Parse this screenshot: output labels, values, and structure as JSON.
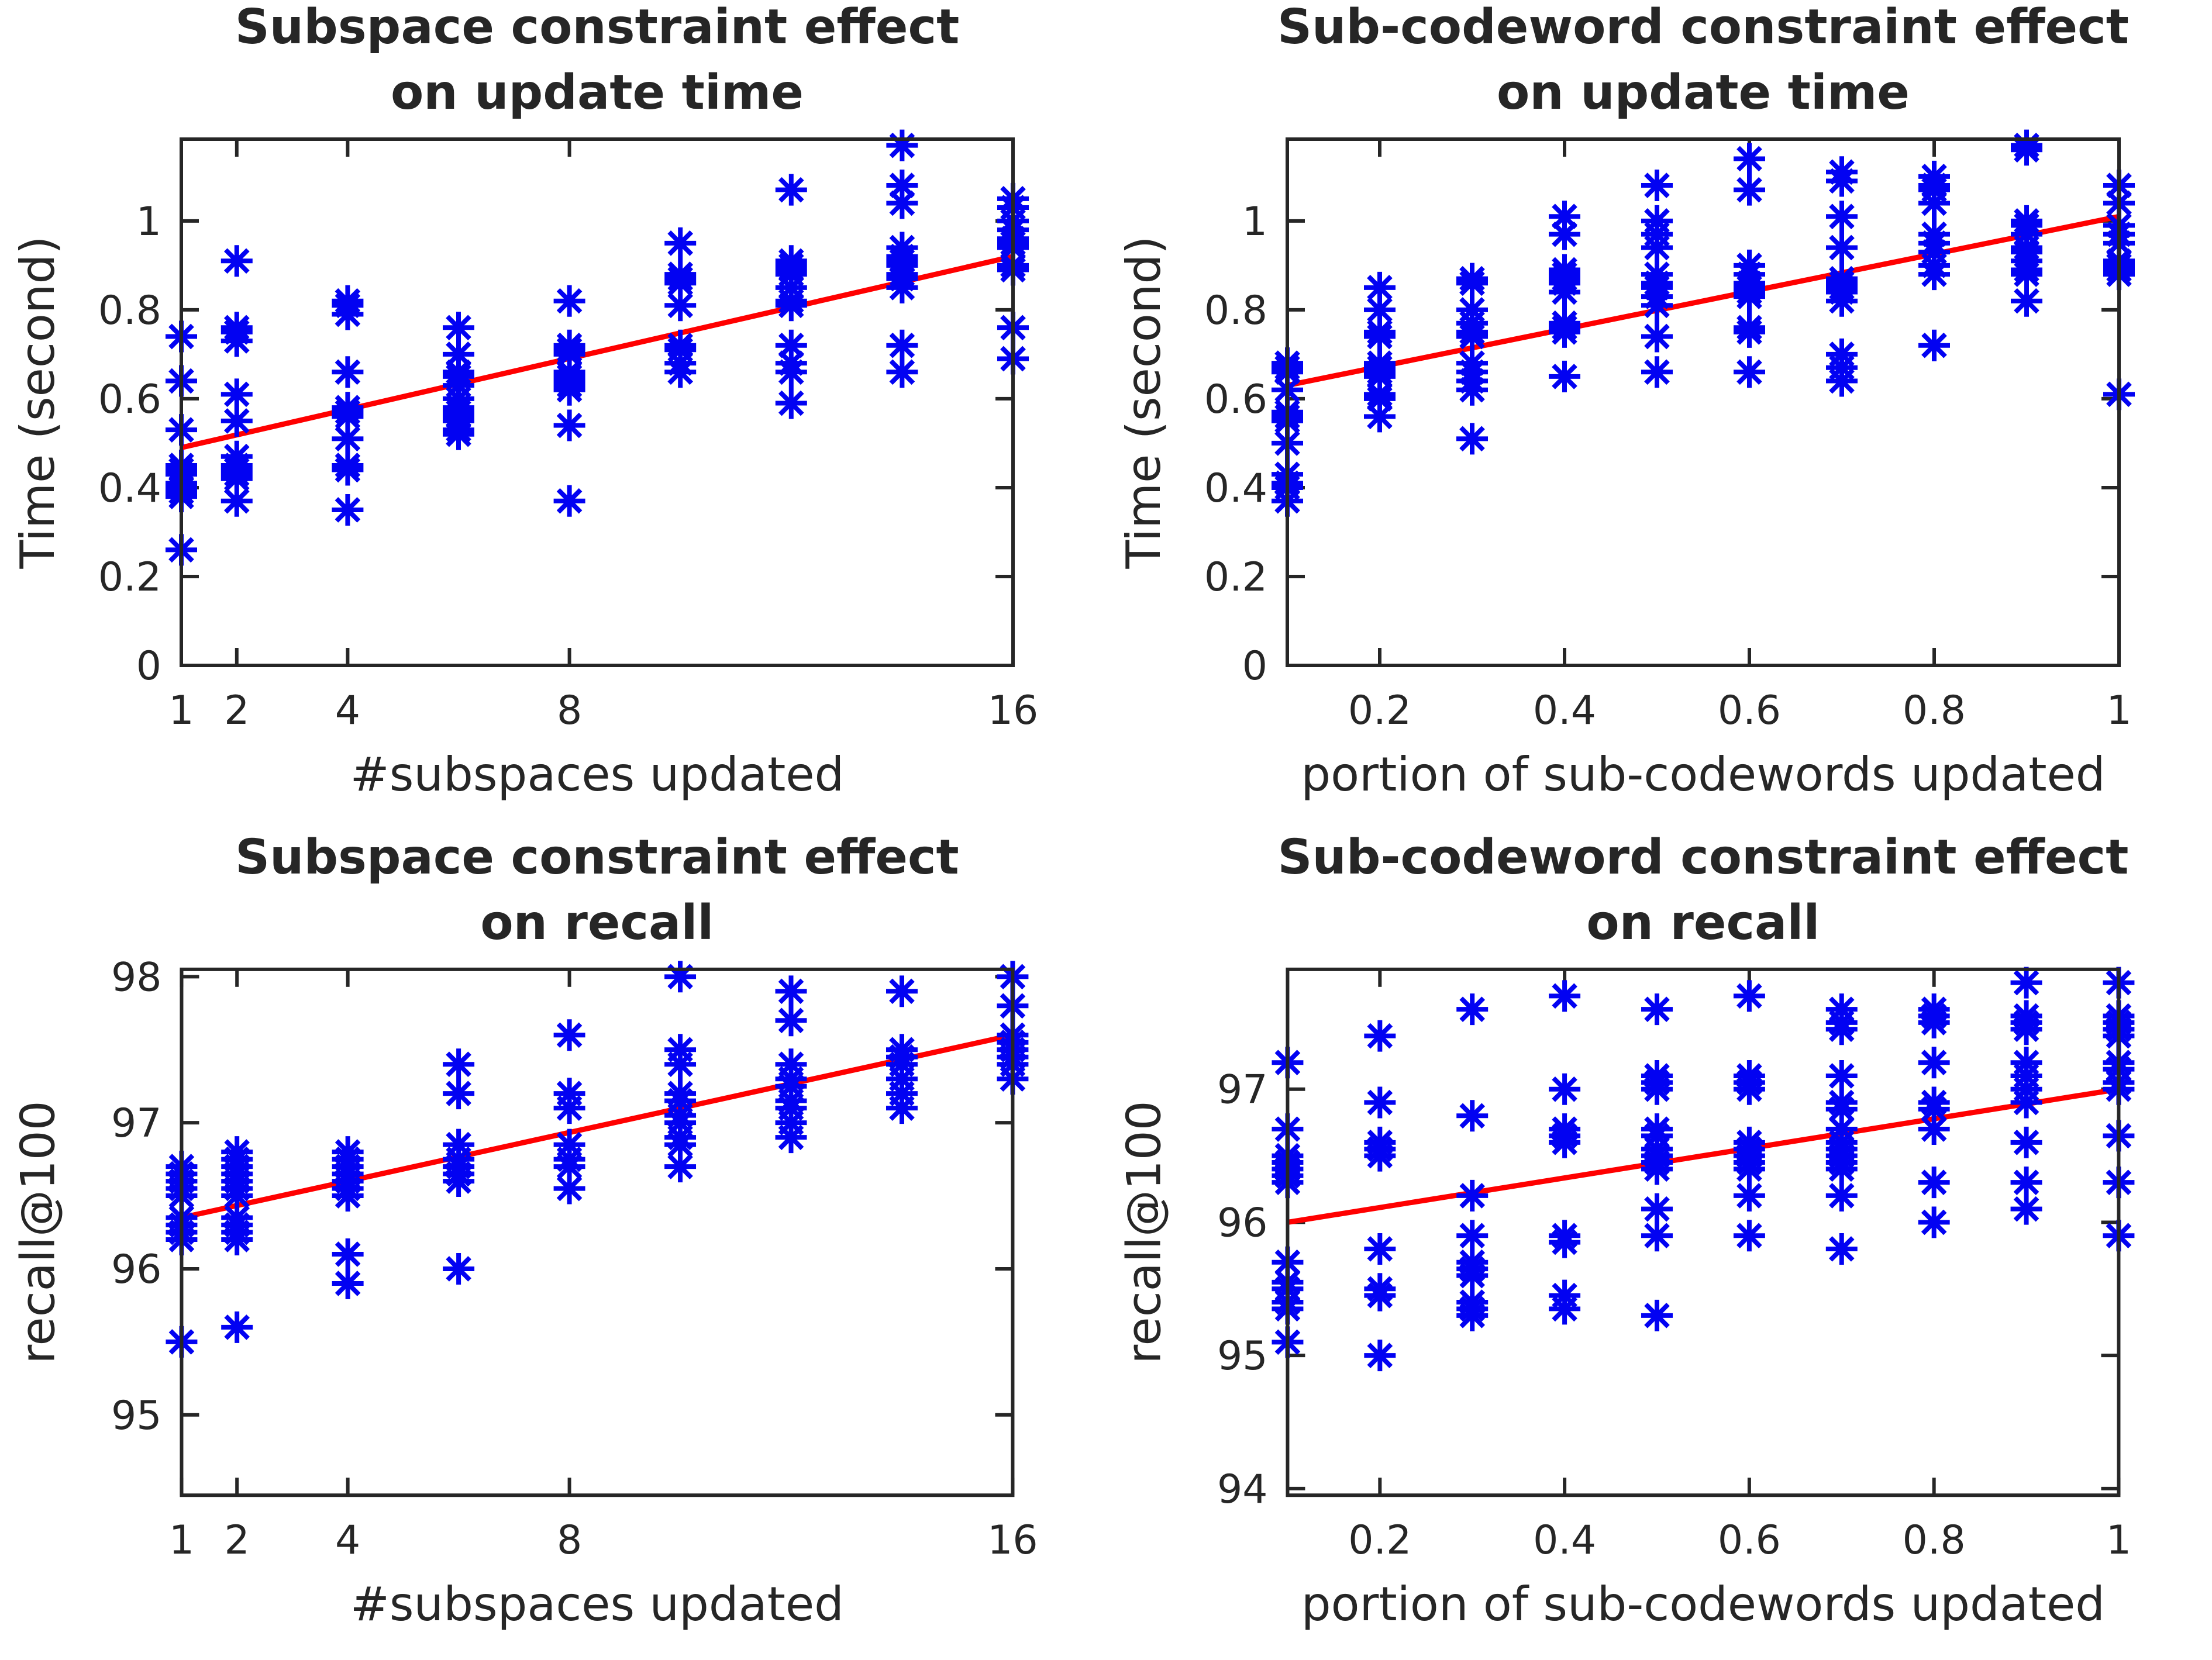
{
  "page": {
    "background": "#ffffff",
    "description": "2x2 grid of MATLAB-style scatter plots with linear fit lines"
  },
  "colors": {
    "marker_blue": "#0202f2",
    "fit_line_red": "#ff0000",
    "axis_color": "#262626",
    "text_color": "#262626"
  },
  "marker": {
    "shape": "asterisk-8-spoke",
    "semantic": "data-point-marker"
  },
  "chart_data": [
    {
      "type": "scatter",
      "title_line1": "Subspace constraint effect",
      "title_line2": "on update time",
      "xlabel": "#subspaces updated",
      "ylabel": "Time (second)",
      "xlim": [
        1,
        16
      ],
      "ylim": [
        0,
        1.184
      ],
      "xtick_values": [
        1,
        2,
        4,
        8,
        16
      ],
      "xtick_labels": [
        "1",
        "2",
        "4",
        "8",
        "16"
      ],
      "ytick_values": [
        0,
        0.2,
        0.4,
        0.6,
        0.8,
        1
      ],
      "ytick_labels": [
        "0",
        "0.2",
        "0.4",
        "0.6",
        "0.8",
        "1"
      ],
      "grid": false,
      "legend": null,
      "clusters": [
        {
          "x": 1,
          "ys": [
            0.74,
            0.64,
            0.53,
            0.45,
            0.44,
            0.43,
            0.41,
            0.4,
            0.39,
            0.38,
            0.26
          ]
        },
        {
          "x": 2,
          "ys": [
            0.91,
            0.76,
            0.75,
            0.73,
            0.61,
            0.55,
            0.47,
            0.45,
            0.44,
            0.43,
            0.42,
            0.37
          ]
        },
        {
          "x": 4,
          "ys": [
            0.82,
            0.81,
            0.79,
            0.66,
            0.58,
            0.57,
            0.56,
            0.51,
            0.45,
            0.44,
            0.35
          ]
        },
        {
          "x": 6,
          "ys": [
            0.76,
            0.7,
            0.66,
            0.65,
            0.63,
            0.6,
            0.58,
            0.57,
            0.56,
            0.55,
            0.53,
            0.52
          ]
        },
        {
          "x": 8,
          "ys": [
            0.82,
            0.72,
            0.71,
            0.7,
            0.66,
            0.65,
            0.64,
            0.63,
            0.62,
            0.54,
            0.37
          ]
        },
        {
          "x": 10,
          "ys": [
            0.95,
            0.88,
            0.87,
            0.86,
            0.81,
            0.72,
            0.71,
            0.68,
            0.66
          ]
        },
        {
          "x": 12,
          "ys": [
            1.07,
            0.91,
            0.9,
            0.89,
            0.88,
            0.85,
            0.82,
            0.81,
            0.72,
            0.68,
            0.66,
            0.59
          ]
        },
        {
          "x": 14,
          "ys": [
            1.17,
            1.08,
            1.04,
            0.94,
            0.92,
            0.91,
            0.9,
            0.88,
            0.87,
            0.85,
            0.72,
            0.66
          ]
        },
        {
          "x": 16,
          "ys": [
            1.05,
            1.03,
            1.0,
            0.98,
            0.96,
            0.95,
            0.94,
            0.9,
            0.89,
            0.76,
            0.69
          ]
        }
      ],
      "fit_line": {
        "x1": 1,
        "y1": 0.49,
        "x2": 16,
        "y2": 0.92
      }
    },
    {
      "type": "scatter",
      "title_line1": "Sub-codeword constraint effect",
      "title_line2": "on update time",
      "xlabel": "portion of sub-codewords updated",
      "ylabel": "Time (second)",
      "xlim": [
        0.1,
        1.0
      ],
      "ylim": [
        0,
        1.184
      ],
      "xtick_values": [
        0.2,
        0.4,
        0.6,
        0.8,
        1.0
      ],
      "xtick_labels": [
        "0.2",
        "0.4",
        "0.6",
        "0.8",
        "1"
      ],
      "ytick_values": [
        0,
        0.2,
        0.4,
        0.6,
        0.8,
        1
      ],
      "ytick_labels": [
        "0",
        "0.2",
        "0.4",
        "0.6",
        "0.8",
        "1"
      ],
      "grid": false,
      "legend": null,
      "clusters": [
        {
          "x": 0.1,
          "ys": [
            0.68,
            0.67,
            0.66,
            0.62,
            0.57,
            0.56,
            0.55,
            0.5,
            0.43,
            0.41,
            0.4,
            0.37
          ]
        },
        {
          "x": 0.2,
          "ys": [
            0.85,
            0.8,
            0.75,
            0.74,
            0.68,
            0.67,
            0.66,
            0.65,
            0.61,
            0.6,
            0.56
          ]
        },
        {
          "x": 0.3,
          "ys": [
            0.87,
            0.86,
            0.8,
            0.77,
            0.75,
            0.74,
            0.68,
            0.66,
            0.64,
            0.62,
            0.51
          ]
        },
        {
          "x": 0.4,
          "ys": [
            1.01,
            0.97,
            0.89,
            0.88,
            0.87,
            0.86,
            0.84,
            0.77,
            0.76,
            0.75,
            0.65
          ]
        },
        {
          "x": 0.5,
          "ys": [
            1.08,
            1.0,
            0.97,
            0.94,
            0.88,
            0.86,
            0.85,
            0.83,
            0.81,
            0.74,
            0.66
          ]
        },
        {
          "x": 0.6,
          "ys": [
            1.14,
            1.07,
            0.9,
            0.88,
            0.86,
            0.85,
            0.84,
            0.83,
            0.76,
            0.75,
            0.66
          ]
        },
        {
          "x": 0.7,
          "ys": [
            1.11,
            1.09,
            1.01,
            0.94,
            0.87,
            0.86,
            0.85,
            0.84,
            0.82,
            0.7,
            0.67,
            0.64
          ]
        },
        {
          "x": 0.8,
          "ys": [
            1.1,
            1.08,
            1.07,
            1.04,
            0.97,
            0.95,
            0.93,
            0.9,
            0.88,
            0.72
          ]
        },
        {
          "x": 0.9,
          "ys": [
            1.17,
            1.16,
            1.0,
            0.99,
            0.97,
            0.94,
            0.93,
            0.91,
            0.89,
            0.88,
            0.82
          ]
        },
        {
          "x": 1.0,
          "ys": [
            1.08,
            1.04,
            0.99,
            0.97,
            0.95,
            0.91,
            0.9,
            0.89,
            0.88,
            0.61
          ]
        }
      ],
      "fit_line": {
        "x1": 0.1,
        "y1": 0.63,
        "x2": 1.0,
        "y2": 1.01
      }
    },
    {
      "type": "scatter",
      "title_line1": "Subspace constraint effect",
      "title_line2": "on recall",
      "xlabel": "#subspaces updated",
      "ylabel": "recall@100",
      "xlim": [
        1,
        16
      ],
      "ylim": [
        94.45,
        98.05
      ],
      "xtick_values": [
        1,
        2,
        4,
        8,
        16
      ],
      "xtick_labels": [
        "1",
        "2",
        "4",
        "8",
        "16"
      ],
      "ytick_values": [
        95,
        96,
        97,
        98
      ],
      "ytick_labels": [
        "95",
        "96",
        "97",
        "98"
      ],
      "grid": false,
      "legend": null,
      "clusters": [
        {
          "x": 1,
          "ys": [
            96.7,
            96.65,
            96.6,
            96.55,
            96.5,
            96.35,
            96.3,
            96.25,
            96.2,
            95.5
          ]
        },
        {
          "x": 2,
          "ys": [
            96.8,
            96.75,
            96.7,
            96.65,
            96.6,
            96.55,
            96.5,
            96.35,
            96.3,
            96.25,
            96.2,
            95.6
          ]
        },
        {
          "x": 4,
          "ys": [
            96.8,
            96.75,
            96.7,
            96.65,
            96.6,
            96.55,
            96.5,
            96.1,
            95.9
          ]
        },
        {
          "x": 6,
          "ys": [
            97.4,
            97.2,
            96.85,
            96.75,
            96.7,
            96.65,
            96.6,
            96.0
          ]
        },
        {
          "x": 8,
          "ys": [
            97.6,
            97.2,
            97.1,
            96.85,
            96.75,
            96.7,
            96.55
          ]
        },
        {
          "x": 10,
          "ys": [
            98.0,
            97.5,
            97.4,
            97.2,
            97.15,
            97.05,
            97.0,
            96.9,
            96.85,
            96.7
          ]
        },
        {
          "x": 12,
          "ys": [
            97.9,
            97.7,
            97.4,
            97.3,
            97.25,
            97.15,
            97.1,
            97.0,
            96.9
          ]
        },
        {
          "x": 14,
          "ys": [
            97.9,
            97.5,
            97.45,
            97.4,
            97.3,
            97.2,
            97.1
          ]
        },
        {
          "x": 16,
          "ys": [
            98.0,
            97.8,
            97.6,
            97.55,
            97.5,
            97.45,
            97.4,
            97.3
          ]
        }
      ],
      "fit_line": {
        "x1": 1,
        "y1": 96.35,
        "x2": 16,
        "y2": 97.6
      }
    },
    {
      "type": "scatter",
      "title_line1": "Sub-codeword constraint effect",
      "title_line2": "on recall",
      "xlabel": "portion of sub-codewords updated",
      "ylabel": "recall@100",
      "xlim": [
        0.1,
        1.0
      ],
      "ylim": [
        93.95,
        97.9
      ],
      "xtick_values": [
        0.2,
        0.4,
        0.6,
        0.8,
        1.0
      ],
      "xtick_labels": [
        "0.2",
        "0.4",
        "0.6",
        "0.8",
        "1"
      ],
      "ytick_values": [
        94,
        95,
        96,
        97
      ],
      "ytick_labels": [
        "94",
        "95",
        "96",
        "97"
      ],
      "grid": false,
      "legend": null,
      "clusters": [
        {
          "x": 0.1,
          "ys": [
            97.2,
            96.7,
            96.5,
            96.45,
            96.4,
            96.35,
            96.3,
            95.7,
            95.55,
            95.5,
            95.4,
            95.35,
            95.1
          ]
        },
        {
          "x": 0.2,
          "ys": [
            97.4,
            96.9,
            96.6,
            96.55,
            96.5,
            95.8,
            95.5,
            95.45,
            95.0
          ]
        },
        {
          "x": 0.3,
          "ys": [
            97.6,
            96.8,
            96.2,
            95.9,
            95.7,
            95.65,
            95.6,
            95.4,
            95.35,
            95.3
          ]
        },
        {
          "x": 0.4,
          "ys": [
            97.7,
            97.0,
            96.7,
            96.65,
            96.6,
            95.9,
            95.85,
            95.45,
            95.35
          ]
        },
        {
          "x": 0.5,
          "ys": [
            97.6,
            97.1,
            97.05,
            97.0,
            96.7,
            96.65,
            96.55,
            96.5,
            96.45,
            96.4,
            96.1,
            95.9,
            95.3
          ]
        },
        {
          "x": 0.6,
          "ys": [
            97.7,
            97.1,
            97.05,
            97.0,
            96.6,
            96.55,
            96.5,
            96.45,
            96.4,
            96.2,
            95.9
          ]
        },
        {
          "x": 0.7,
          "ys": [
            97.6,
            97.5,
            97.45,
            97.1,
            96.9,
            96.85,
            96.7,
            96.6,
            96.55,
            96.5,
            96.45,
            96.4,
            96.2,
            95.8
          ]
        },
        {
          "x": 0.8,
          "ys": [
            97.6,
            97.55,
            97.5,
            97.2,
            96.9,
            96.85,
            96.7,
            96.3,
            96.0
          ]
        },
        {
          "x": 0.9,
          "ys": [
            97.8,
            97.55,
            97.5,
            97.45,
            97.2,
            97.1,
            97.0,
            96.9,
            96.6,
            96.3,
            96.1
          ]
        },
        {
          "x": 1.0,
          "ys": [
            97.8,
            97.55,
            97.5,
            97.45,
            97.4,
            97.2,
            97.15,
            97.05,
            97.0,
            96.65,
            96.3,
            95.9
          ]
        }
      ],
      "fit_line": {
        "x1": 0.1,
        "y1": 96.0,
        "x2": 1.0,
        "y2": 97.0
      }
    }
  ]
}
